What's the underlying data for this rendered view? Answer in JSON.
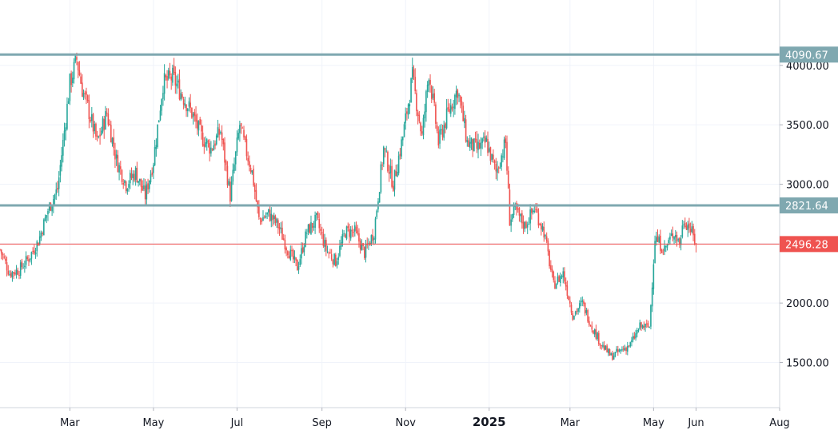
{
  "chart_data": {
    "type": "candlestick",
    "x_axis": {
      "tick_labels": [
        "Mar",
        "May",
        "Jul",
        "Sep",
        "Nov",
        "2025",
        "Mar",
        "May",
        "Jun",
        "Aug"
      ],
      "tick_dates": [
        "2024-03-01",
        "2024-05-01",
        "2024-07-01",
        "2024-09-01",
        "2024-11-01",
        "2025-01-01",
        "2025-03-01",
        "2025-05-01",
        "2025-06-01",
        "2025-08-01"
      ],
      "range": [
        "2024-01-10",
        "2025-08-01"
      ]
    },
    "y_axis": {
      "position": "right",
      "tick_labels": [
        "1500.00",
        "2000.00",
        "2500.00",
        "3000.00",
        "3500.00",
        "4000.00"
      ],
      "tick_values": [
        1500,
        2000,
        2500,
        3000,
        3500,
        4000
      ],
      "range": [
        1120,
        4550
      ]
    },
    "horizontal_levels": [
      {
        "label": "4090.67",
        "value": 4090.67,
        "color": "#7fa8b0"
      },
      {
        "label": "2821.64",
        "value": 2821.64,
        "color": "#7fa8b0"
      }
    ],
    "last_price": {
      "label": "2496.28",
      "value": 2496.28,
      "color": "#ef5350"
    },
    "series": [
      {
        "kind": "weekly-close-path",
        "points": [
          [
            "2024-01-10",
            2450
          ],
          [
            "2024-01-17",
            2250
          ],
          [
            "2024-01-24",
            2280
          ],
          [
            "2024-01-31",
            2380
          ],
          [
            "2024-02-07",
            2520
          ],
          [
            "2024-02-14",
            2780
          ],
          [
            "2024-02-21",
            2960
          ],
          [
            "2024-02-25",
            3350
          ],
          [
            "2024-03-01",
            3850
          ],
          [
            "2024-03-06",
            4050
          ],
          [
            "2024-03-10",
            3800
          ],
          [
            "2024-03-14",
            3650
          ],
          [
            "2024-03-21",
            3350
          ],
          [
            "2024-03-28",
            3600
          ],
          [
            "2024-04-04",
            3200
          ],
          [
            "2024-04-11",
            3000
          ],
          [
            "2024-04-18",
            3100
          ],
          [
            "2024-04-25",
            2900
          ],
          [
            "2024-05-01",
            3200
          ],
          [
            "2024-05-08",
            3850
          ],
          [
            "2024-05-15",
            3900
          ],
          [
            "2024-05-22",
            3750
          ],
          [
            "2024-05-29",
            3600
          ],
          [
            "2024-06-05",
            3400
          ],
          [
            "2024-06-12",
            3300
          ],
          [
            "2024-06-19",
            3450
          ],
          [
            "2024-06-26",
            2900
          ],
          [
            "2024-07-03",
            3500
          ],
          [
            "2024-07-06",
            3350
          ],
          [
            "2024-07-12",
            3100
          ],
          [
            "2024-07-17",
            2700
          ],
          [
            "2024-07-24",
            2750
          ],
          [
            "2024-07-31",
            2650
          ],
          [
            "2024-08-07",
            2450
          ],
          [
            "2024-08-14",
            2300
          ],
          [
            "2024-08-21",
            2600
          ],
          [
            "2024-08-28",
            2700
          ],
          [
            "2024-09-04",
            2450
          ],
          [
            "2024-09-11",
            2350
          ],
          [
            "2024-09-18",
            2600
          ],
          [
            "2024-09-25",
            2600
          ],
          [
            "2024-10-02",
            2420
          ],
          [
            "2024-10-09",
            2600
          ],
          [
            "2024-10-16",
            3300
          ],
          [
            "2024-10-23",
            3000
          ],
          [
            "2024-10-30",
            3400
          ],
          [
            "2024-11-06",
            3900
          ],
          [
            "2024-11-13",
            3400
          ],
          [
            "2024-11-18",
            3950
          ],
          [
            "2024-11-25",
            3350
          ],
          [
            "2024-12-02",
            3600
          ],
          [
            "2024-12-09",
            3800
          ],
          [
            "2024-12-16",
            3350
          ],
          [
            "2024-12-23",
            3300
          ],
          [
            "2024-12-30",
            3350
          ],
          [
            "2025-01-06",
            3100
          ],
          [
            "2025-01-13",
            3350
          ],
          [
            "2025-01-16",
            2700
          ],
          [
            "2025-01-20",
            2780
          ],
          [
            "2025-01-27",
            2650
          ],
          [
            "2025-02-03",
            2800
          ],
          [
            "2025-02-10",
            2600
          ],
          [
            "2025-02-17",
            2150
          ],
          [
            "2025-02-24",
            2250
          ],
          [
            "2025-03-03",
            1900
          ],
          [
            "2025-03-10",
            2000
          ],
          [
            "2025-03-17",
            1800
          ],
          [
            "2025-03-24",
            1650
          ],
          [
            "2025-03-31",
            1550
          ],
          [
            "2025-04-07",
            1600
          ],
          [
            "2025-04-14",
            1650
          ],
          [
            "2025-04-21",
            1800
          ],
          [
            "2025-04-28",
            1800
          ],
          [
            "2025-05-02",
            2550
          ],
          [
            "2025-05-09",
            2450
          ],
          [
            "2025-05-16",
            2600
          ],
          [
            "2025-05-20",
            2500
          ],
          [
            "2025-05-23",
            2700
          ],
          [
            "2025-05-27",
            2650
          ],
          [
            "2025-06-01",
            2496.28
          ]
        ]
      }
    ],
    "colors": {
      "up": "#26a69a",
      "down": "#ef5350"
    },
    "grid": true
  }
}
